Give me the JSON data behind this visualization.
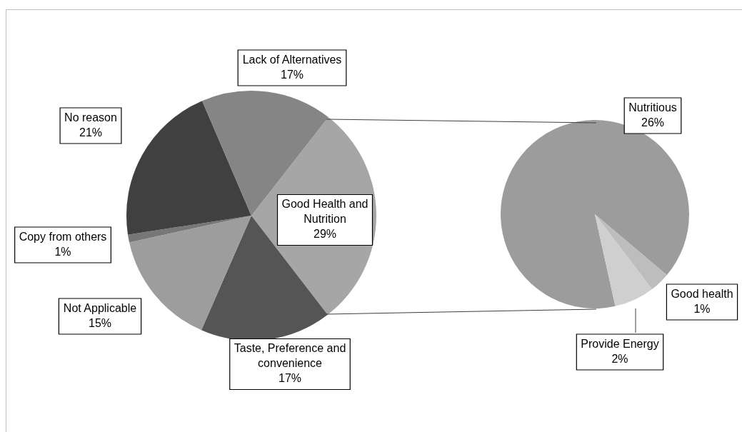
{
  "chart_data": [
    {
      "type": "pie",
      "categories": [
        "Good Health and Nutrition",
        "Taste, Preference and convenience",
        "Not Applicable",
        "Copy from others",
        "No reason",
        "Lack of Alternatives"
      ],
      "values": [
        29,
        17,
        15,
        1,
        21,
        17
      ],
      "value_labels": [
        "29%",
        "17%",
        "15%",
        "1%",
        "21%",
        "17%"
      ],
      "colors": [
        "#a6a6a6",
        "#555555",
        "#9d9d9d",
        "#777777",
        "#404040",
        "#858585"
      ]
    },
    {
      "type": "pie",
      "categories": [
        "Nutritious",
        "Good health",
        "Provide Energy"
      ],
      "values": [
        26,
        1,
        2
      ],
      "value_labels": [
        "26%",
        "1%",
        "2%"
      ],
      "colors": [
        "#9c9c9c",
        "#bdbdbd",
        "#cfcfcf"
      ]
    }
  ]
}
